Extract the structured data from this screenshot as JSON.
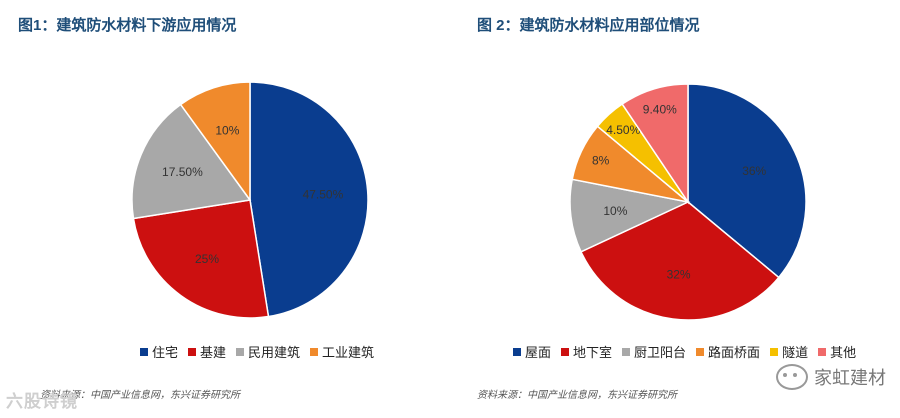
{
  "left": {
    "title": "图1：建筑防水材料下游应用情况",
    "source": "资料来源：中国产业信息网，东兴证券研究所"
  },
  "right": {
    "title": "图 2：建筑防水材料应用部位情况",
    "source": "资料来源：中国产业信息网，东兴证券研究所"
  },
  "watermark": {
    "left_text": "六股诗镜",
    "right_text": "家虹建材",
    "right_icon": "wechat-icon"
  },
  "chart_data": [
    {
      "type": "pie",
      "title": "",
      "categories": [
        "住宅",
        "基建",
        "民用建筑",
        "工业建筑"
      ],
      "values": [
        47.5,
        25,
        17.5,
        10
      ],
      "labels": [
        "47.50%",
        "25%",
        "17.50%",
        "10%"
      ],
      "colors": [
        "#0a3d8f",
        "#cc1010",
        "#a8a8a8",
        "#f08a2c"
      ],
      "start": "12 o'clock, clockwise",
      "legend": "bottom"
    },
    {
      "type": "pie",
      "title": "",
      "categories": [
        "屋面",
        "地下室",
        "厨卫阳台",
        "路面桥面",
        "隧道",
        "其他"
      ],
      "values": [
        36,
        32,
        10,
        8,
        4.5,
        9.4
      ],
      "labels": [
        "36%",
        "32%",
        "10%",
        "8%",
        "4.50%",
        "9.40%"
      ],
      "colors": [
        "#0a3d8f",
        "#cc1010",
        "#a8a8a8",
        "#f08a2c",
        "#f5c000",
        "#f06a6a"
      ],
      "start": "12 o'clock, clockwise",
      "legend": "bottom"
    }
  ]
}
